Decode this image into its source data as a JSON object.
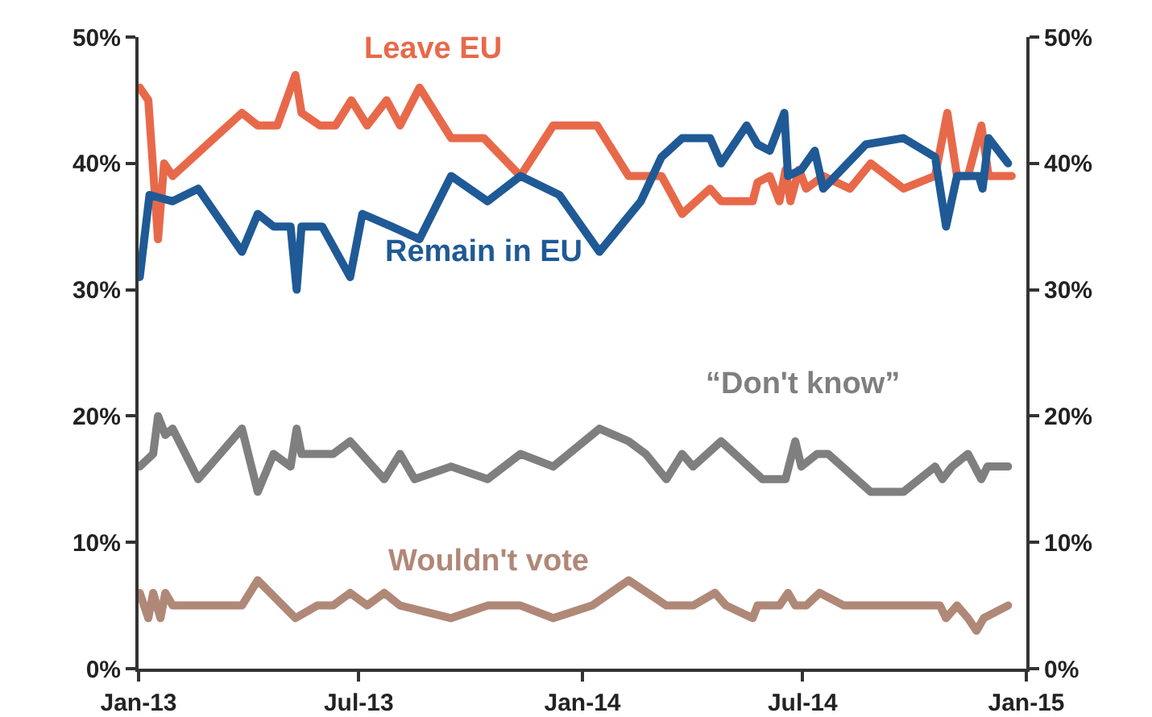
{
  "chart_data": {
    "type": "line",
    "xlim": [
      "2013-01-01",
      "2015-01-01"
    ],
    "xticks": [
      {
        "value": "2013-01-01",
        "label": "Jan-13"
      },
      {
        "value": "2013-07-01",
        "label": "Jul-13"
      },
      {
        "value": "2014-01-01",
        "label": "Jan-14"
      },
      {
        "value": "2014-07-01",
        "label": "Jul-14"
      },
      {
        "value": "2015-01-01",
        "label": "Jan-15"
      }
    ],
    "ylim": [
      0,
      50
    ],
    "yticks": [
      {
        "value": 0,
        "label": "0%"
      },
      {
        "value": 10,
        "label": "10%"
      },
      {
        "value": 20,
        "label": "20%"
      },
      {
        "value": 30,
        "label": "30%"
      },
      {
        "value": 40,
        "label": "40%"
      },
      {
        "value": 50,
        "label": "50%"
      }
    ],
    "y2lim": [
      0,
      50
    ],
    "y2ticks": [
      {
        "value": 0,
        "label": "0%"
      },
      {
        "value": 10,
        "label": "10%"
      },
      {
        "value": 20,
        "label": "20%"
      },
      {
        "value": 30,
        "label": "30%"
      },
      {
        "value": 40,
        "label": "40%"
      },
      {
        "value": 50,
        "label": "50%"
      }
    ],
    "grid": false,
    "legend": false,
    "marker": "none",
    "line_style": "solid",
    "series": [
      {
        "name": "Leave EU",
        "color": "#e8694a",
        "x": [
          "2013-01-02",
          "2013-01-09",
          "2013-01-17",
          "2013-01-22",
          "2013-01-29",
          "2013-03-27",
          "2013-04-09",
          "2013-04-25",
          "2013-05-10",
          "2013-05-15",
          "2013-05-30",
          "2013-06-12",
          "2013-06-25",
          "2013-07-08",
          "2013-07-24",
          "2013-08-04",
          "2013-08-20",
          "2013-09-15",
          "2013-10-12",
          "2013-11-11",
          "2013-12-08",
          "2014-01-13",
          "2014-02-08",
          "2014-02-22",
          "2014-03-07",
          "2014-03-24",
          "2014-04-16",
          "2014-04-25",
          "2014-04-29",
          "2014-05-21",
          "2014-05-25",
          "2014-06-04",
          "2014-06-12",
          "2014-06-17",
          "2014-06-21",
          "2014-06-28",
          "2014-07-04",
          "2014-07-18",
          "2014-08-09",
          "2014-08-26",
          "2014-09-22",
          "2014-10-18",
          "2014-10-28",
          "2014-11-05",
          "2014-11-14",
          "2014-11-25",
          "2014-12-01",
          "2014-12-20"
        ],
        "values": [
          46,
          45,
          34,
          40,
          39,
          44,
          43,
          43,
          47,
          44,
          43,
          43,
          45,
          43,
          45,
          43,
          46,
          42,
          42,
          39,
          43,
          43,
          39,
          39,
          39,
          36,
          38,
          37,
          37,
          37,
          38.5,
          39,
          37,
          39.5,
          37,
          39.5,
          38,
          39,
          38,
          40,
          38,
          39,
          44,
          39,
          39,
          43,
          39,
          39
        ]
      },
      {
        "name": "Remain in EU",
        "color": "#1f5a96",
        "x": [
          "2013-01-02",
          "2013-01-10",
          "2013-01-29",
          "2013-02-19",
          "2013-03-27",
          "2013-04-09",
          "2013-04-22",
          "2013-05-06",
          "2013-05-11",
          "2013-05-15",
          "2013-06-01",
          "2013-06-24",
          "2013-07-04",
          "2013-07-28",
          "2013-08-20",
          "2013-09-15",
          "2013-10-15",
          "2013-11-11",
          "2013-12-13",
          "2014-01-15",
          "2014-02-18",
          "2014-03-07",
          "2014-03-24",
          "2014-04-16",
          "2014-04-25",
          "2014-05-16",
          "2014-05-25",
          "2014-06-04",
          "2014-06-16",
          "2014-06-19",
          "2014-06-30",
          "2014-07-11",
          "2014-07-18",
          "2014-08-22",
          "2014-09-22",
          "2014-10-18",
          "2014-10-27",
          "2014-11-05",
          "2014-11-23",
          "2014-11-26",
          "2014-12-01",
          "2014-12-17"
        ],
        "values": [
          31,
          37.5,
          37,
          38,
          33,
          36,
          35,
          35,
          30,
          35,
          35,
          31,
          36,
          35,
          34,
          39,
          37,
          39,
          37.5,
          33,
          37,
          40.5,
          42,
          42,
          40,
          43,
          41.5,
          41,
          44,
          39,
          39.5,
          41,
          38,
          41.5,
          42,
          40.5,
          35,
          39,
          39,
          38,
          42,
          40
        ]
      },
      {
        "name": "“Don't know”",
        "color": "#7f7f7f",
        "x": [
          "2013-01-02",
          "2013-01-13",
          "2013-01-17",
          "2013-01-23",
          "2013-01-29",
          "2013-02-19",
          "2013-03-27",
          "2013-04-09",
          "2013-04-22",
          "2013-05-06",
          "2013-05-11",
          "2013-05-15",
          "2013-06-10",
          "2013-06-24",
          "2013-07-22",
          "2013-08-04",
          "2013-08-16",
          "2013-09-15",
          "2013-10-15",
          "2013-11-11",
          "2013-12-08",
          "2014-01-15",
          "2014-02-08",
          "2014-02-22",
          "2014-03-11",
          "2014-03-24",
          "2014-04-02",
          "2014-04-25",
          "2014-05-29",
          "2014-06-17",
          "2014-06-25",
          "2014-06-30",
          "2014-07-13",
          "2014-07-22",
          "2014-08-26",
          "2014-09-22",
          "2014-10-18",
          "2014-10-24",
          "2014-11-01",
          "2014-11-14",
          "2014-11-25",
          "2014-11-30",
          "2014-12-17"
        ],
        "values": [
          16,
          17,
          20,
          18.5,
          19,
          15,
          19,
          14,
          17,
          16,
          19,
          17,
          17,
          18,
          15,
          17,
          15,
          16,
          15,
          17,
          16,
          19,
          18,
          17,
          15,
          17,
          16,
          18,
          15,
          15,
          18,
          16,
          17,
          17,
          14,
          14,
          16,
          15,
          16,
          17,
          15,
          16,
          16
        ]
      },
      {
        "name": "Wouldn't vote",
        "color": "#b08878",
        "x": [
          "2013-01-02",
          "2013-01-09",
          "2013-01-13",
          "2013-01-19",
          "2013-01-23",
          "2013-01-29",
          "2013-03-27",
          "2013-04-09",
          "2013-05-10",
          "2013-05-28",
          "2013-06-10",
          "2013-06-24",
          "2013-07-08",
          "2013-07-22",
          "2013-08-04",
          "2013-09-15",
          "2013-10-15",
          "2013-11-11",
          "2013-12-08",
          "2014-01-09",
          "2014-02-08",
          "2014-03-11",
          "2014-04-02",
          "2014-04-20",
          "2014-04-29",
          "2014-05-21",
          "2014-05-25",
          "2014-06-12",
          "2014-06-19",
          "2014-06-25",
          "2014-07-04",
          "2014-07-15",
          "2014-08-04",
          "2014-10-22",
          "2014-10-27",
          "2014-11-05",
          "2014-11-14",
          "2014-11-21",
          "2014-11-27",
          "2014-12-17"
        ],
        "values": [
          6,
          4,
          6,
          4,
          6,
          5,
          5,
          7,
          4,
          5,
          5,
          6,
          5,
          6,
          5,
          4,
          5,
          5,
          4,
          5,
          7,
          5,
          5,
          6,
          5,
          4,
          5,
          5,
          6,
          5,
          5,
          6,
          5,
          5,
          4,
          5,
          4,
          3,
          4,
          5
        ]
      }
    ]
  }
}
